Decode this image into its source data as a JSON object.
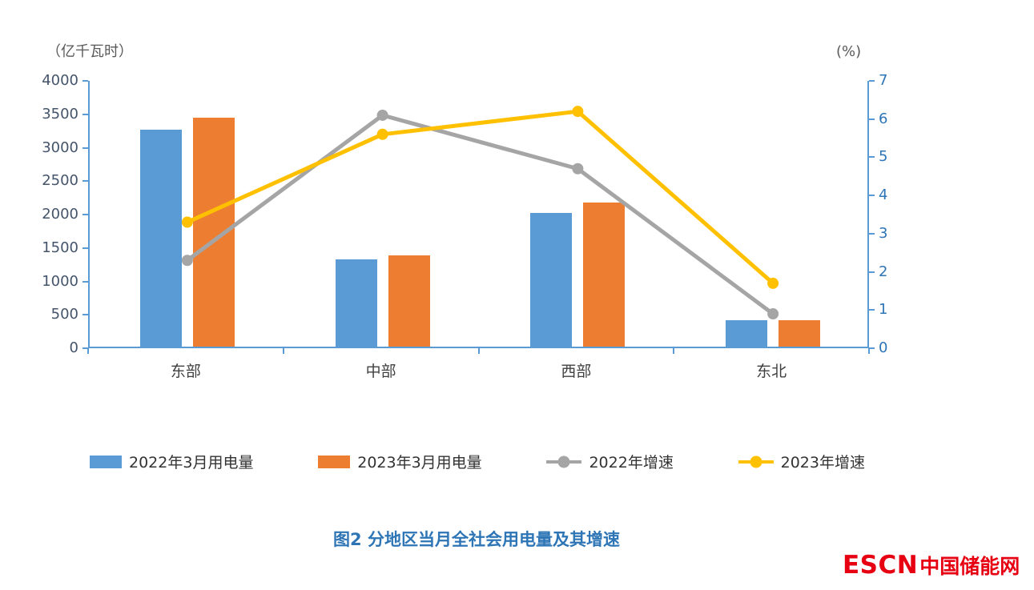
{
  "chart_data": {
    "type": "bar",
    "subtype": "bar-line-combo",
    "title": "图2 分地区当月全社会用电量及其增速",
    "left_axis_title": "（亿千瓦时）",
    "right_axis_title": "(%)",
    "categories": [
      "东部",
      "中部",
      "西部",
      "东北"
    ],
    "bar_series": [
      {
        "name": "2022年3月用电量",
        "color": "#5B9BD5",
        "axis": "left",
        "values": [
          3250,
          1310,
          2000,
          390
        ]
      },
      {
        "name": "2023年3月用电量",
        "color": "#ED7D31",
        "axis": "left",
        "values": [
          3430,
          1360,
          2150,
          400
        ]
      }
    ],
    "line_series": [
      {
        "name": "2022年增速",
        "color": "#A5A5A5",
        "axis": "right",
        "values": [
          2.3,
          6.1,
          4.7,
          0.9
        ]
      },
      {
        "name": "2023年增速",
        "color": "#FFC000",
        "axis": "right",
        "values": [
          3.3,
          5.6,
          6.2,
          1.7
        ]
      }
    ],
    "left_axis": {
      "min": 0,
      "max": 4000,
      "step": 500,
      "ticks": [
        "0",
        "500",
        "1000",
        "1500",
        "2000",
        "2500",
        "3000",
        "3500",
        "4000"
      ]
    },
    "right_axis": {
      "min": 0,
      "max": 7,
      "step": 1,
      "ticks": [
        "0",
        "1",
        "2",
        "3",
        "4",
        "5",
        "6",
        "7"
      ]
    },
    "legend_position": "bottom",
    "grid": false
  },
  "caption": "图2 分地区当月全社会用电量及其增速",
  "logo": {
    "escn": "ESCN",
    "cn": "中国储能网"
  },
  "colors": {
    "axis_line": "#5B9BD5",
    "left_tick_label": "#44546A",
    "right_tick_label": "#2E75B6",
    "caption": "#2E75B6",
    "logo_red": "#E60012"
  }
}
